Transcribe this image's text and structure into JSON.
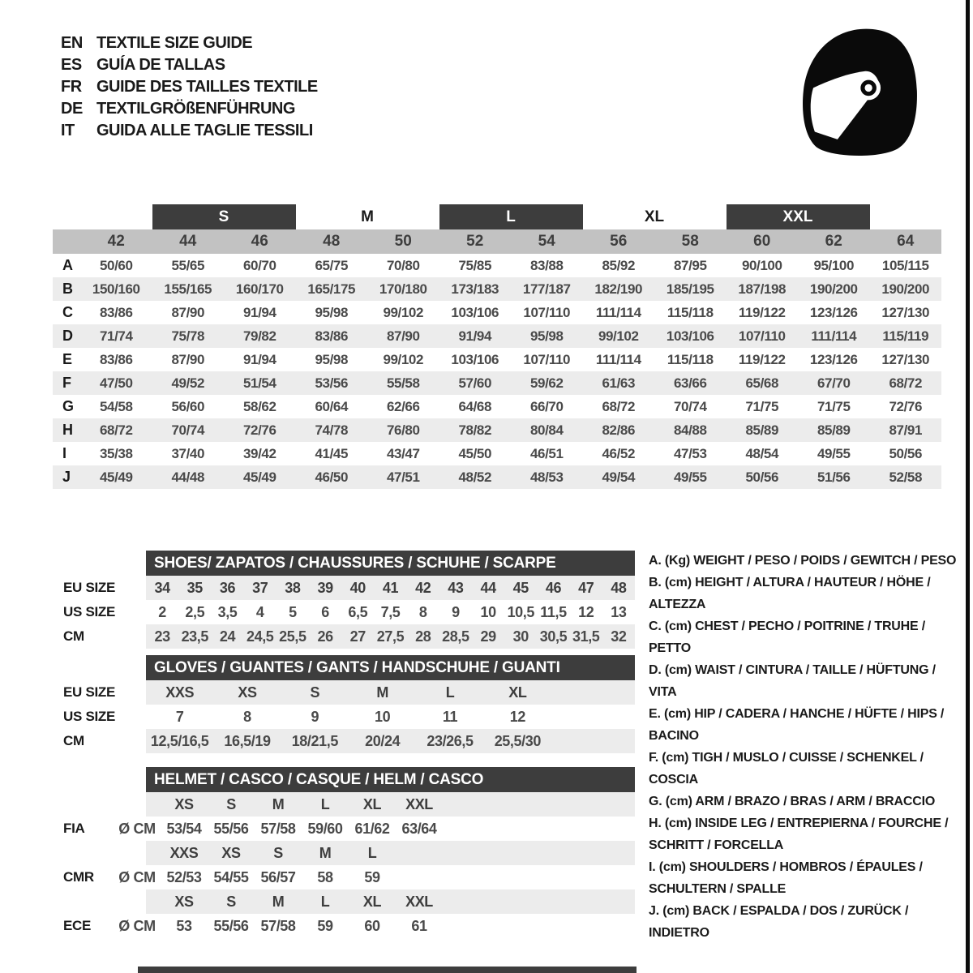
{
  "header": {
    "languages": [
      {
        "code": "EN",
        "label": "TEXTILE SIZE GUIDE"
      },
      {
        "code": "ES",
        "label": "GUÍA DE TALLAS"
      },
      {
        "code": "FR",
        "label": "GUIDE DES TAILLES TEXTILE"
      },
      {
        "code": "DE",
        "label": "TEXTILGRÖßENFÜHRUNG"
      },
      {
        "code": "IT",
        "label": "GUIDA ALLE TAGLIE TESSILI"
      }
    ],
    "helmet_icon": "racing-helmet-icon"
  },
  "main_table": {
    "size_groups": [
      {
        "label": "S",
        "highlighted": true,
        "col_start": 3,
        "col_end": 5
      },
      {
        "label": "M",
        "highlighted": false,
        "col_start": 5,
        "col_end": 7
      },
      {
        "label": "L",
        "highlighted": true,
        "col_start": 7,
        "col_end": 9
      },
      {
        "label": "XL",
        "highlighted": false,
        "col_start": 9,
        "col_end": 11
      },
      {
        "label": "XXL",
        "highlighted": true,
        "col_start": 11,
        "col_end": 13
      }
    ],
    "columns": [
      "42",
      "44",
      "46",
      "48",
      "50",
      "52",
      "54",
      "56",
      "58",
      "60",
      "62",
      "64"
    ],
    "rows": [
      {
        "label": "A",
        "values": [
          "50/60",
          "55/65",
          "60/70",
          "65/75",
          "70/80",
          "75/85",
          "83/88",
          "85/92",
          "87/95",
          "90/100",
          "95/100",
          "105/115"
        ]
      },
      {
        "label": "B",
        "values": [
          "150/160",
          "155/165",
          "160/170",
          "165/175",
          "170/180",
          "173/183",
          "177/187",
          "182/190",
          "185/195",
          "187/198",
          "190/200",
          "190/200"
        ]
      },
      {
        "label": "C",
        "values": [
          "83/86",
          "87/90",
          "91/94",
          "95/98",
          "99/102",
          "103/106",
          "107/110",
          "111/114",
          "115/118",
          "119/122",
          "123/126",
          "127/130"
        ]
      },
      {
        "label": "D",
        "values": [
          "71/74",
          "75/78",
          "79/82",
          "83/86",
          "87/90",
          "91/94",
          "95/98",
          "99/102",
          "103/106",
          "107/110",
          "111/114",
          "115/119"
        ]
      },
      {
        "label": "E",
        "values": [
          "83/86",
          "87/90",
          "91/94",
          "95/98",
          "99/102",
          "103/106",
          "107/110",
          "111/114",
          "115/118",
          "119/122",
          "123/126",
          "127/130"
        ]
      },
      {
        "label": "F",
        "values": [
          "47/50",
          "49/52",
          "51/54",
          "53/56",
          "55/58",
          "57/60",
          "59/62",
          "61/63",
          "63/66",
          "65/68",
          "67/70",
          "68/72"
        ]
      },
      {
        "label": "G",
        "values": [
          "54/58",
          "56/60",
          "58/62",
          "60/64",
          "62/66",
          "64/68",
          "66/70",
          "68/72",
          "70/74",
          "71/75",
          "71/75",
          "72/76"
        ]
      },
      {
        "label": "H",
        "values": [
          "68/72",
          "70/74",
          "72/76",
          "74/78",
          "76/80",
          "78/82",
          "80/84",
          "82/86",
          "84/88",
          "85/89",
          "85/89",
          "87/91"
        ]
      },
      {
        "label": "I",
        "values": [
          "35/38",
          "37/40",
          "39/42",
          "41/45",
          "43/47",
          "45/50",
          "46/51",
          "46/52",
          "47/53",
          "48/54",
          "49/55",
          "50/56"
        ]
      },
      {
        "label": "J",
        "values": [
          "45/49",
          "44/48",
          "45/49",
          "46/50",
          "47/51",
          "48/52",
          "48/53",
          "49/54",
          "49/55",
          "50/56",
          "51/56",
          "52/58"
        ]
      }
    ]
  },
  "shoes": {
    "title": "SHOES/ ZAPATOS / CHAUSSURES / SCHUHE / SCARPE",
    "rows": [
      {
        "label": "EU SIZE",
        "values": [
          "34",
          "35",
          "36",
          "37",
          "38",
          "39",
          "40",
          "41",
          "42",
          "43",
          "44",
          "45",
          "46",
          "47",
          "48"
        ]
      },
      {
        "label": "US SIZE",
        "values": [
          "2",
          "2,5",
          "3,5",
          "4",
          "5",
          "6",
          "6,5",
          "7,5",
          "8",
          "9",
          "10",
          "10,5",
          "11,5",
          "12",
          "13"
        ]
      },
      {
        "label": "CM",
        "values": [
          "23",
          "23,5",
          "24",
          "24,5",
          "25,5",
          "26",
          "27",
          "27,5",
          "28",
          "28,5",
          "29",
          "30",
          "30,5",
          "31,5",
          "32"
        ]
      }
    ]
  },
  "gloves": {
    "title": "GLOVES / GUANTES / GANTS / HANDSCHUHE / GUANTI",
    "rows": [
      {
        "label": "EU SIZE",
        "values": [
          "XXS",
          "XS",
          "S",
          "M",
          "L",
          "XL"
        ]
      },
      {
        "label": "US SIZE",
        "values": [
          "7",
          "8",
          "9",
          "10",
          "11",
          "12"
        ]
      },
      {
        "label": "CM",
        "values": [
          "12,5/16,5",
          "16,5/19",
          "18/21,5",
          "20/24",
          "23/26,5",
          "25,5/30"
        ]
      }
    ]
  },
  "helmet": {
    "title": "HELMET / CASCO / CASQUE / HELM / CASCO",
    "diameter_label": "Ø CM",
    "standards": [
      {
        "label": "FIA",
        "sizes": [
          "XS",
          "S",
          "M",
          "L",
          "XL",
          "XXL"
        ],
        "values": [
          "53/54",
          "55/56",
          "57/58",
          "59/60",
          "61/62",
          "63/64"
        ]
      },
      {
        "label": "CMR",
        "sizes": [
          "XXS",
          "XS",
          "S",
          "M",
          "L"
        ],
        "values": [
          "52/53",
          "54/55",
          "56/57",
          "58",
          "59"
        ]
      },
      {
        "label": "ECE",
        "sizes": [
          "XS",
          "S",
          "M",
          "L",
          "XL",
          "XXL"
        ],
        "values": [
          "53",
          "55/56",
          "57/58",
          "59",
          "60",
          "61"
        ]
      }
    ]
  },
  "legend": {
    "items": [
      "A. (Kg) WEIGHT / PESO / POIDS / GEWITCH / PESO",
      "B. (cm) HEIGHT / ALTURA / HAUTEUR / HÖHE / ALTEZZA",
      "C. (cm) CHEST / PECHO / POITRINE / TRUHE / PETTO",
      "D. (cm) WAIST / CINTURA / TAILLE / HÜFTUNG / VITA",
      "E. (cm) HIP / CADERA / HANCHE / HÜFTE / HIPS / BACINO",
      "F. (cm) TIGH / MUSLO / CUISSE / SCHENKEL / COSCIA",
      "G. (cm) ARM / BRAZO / BRAS / ARM / BRACCIO",
      "H. (cm) INSIDE LEG / ENTREPIERNA / FOURCHE / SCHRITT / FORCELLA",
      "I. (cm) SHOULDERS / HOMBROS / ÉPAULES / SCHULTERN / SPALLE",
      "J. (cm) BACK / ESPALDA / DOS / ZURÜCK / INDIETRO"
    ]
  },
  "colors": {
    "dark_bar": "#3d3d3d",
    "size_strip": "#c2c2c2",
    "row_stripe": "#ececec",
    "text": "#1a1a1a",
    "value_text": "#4a4a4a"
  }
}
